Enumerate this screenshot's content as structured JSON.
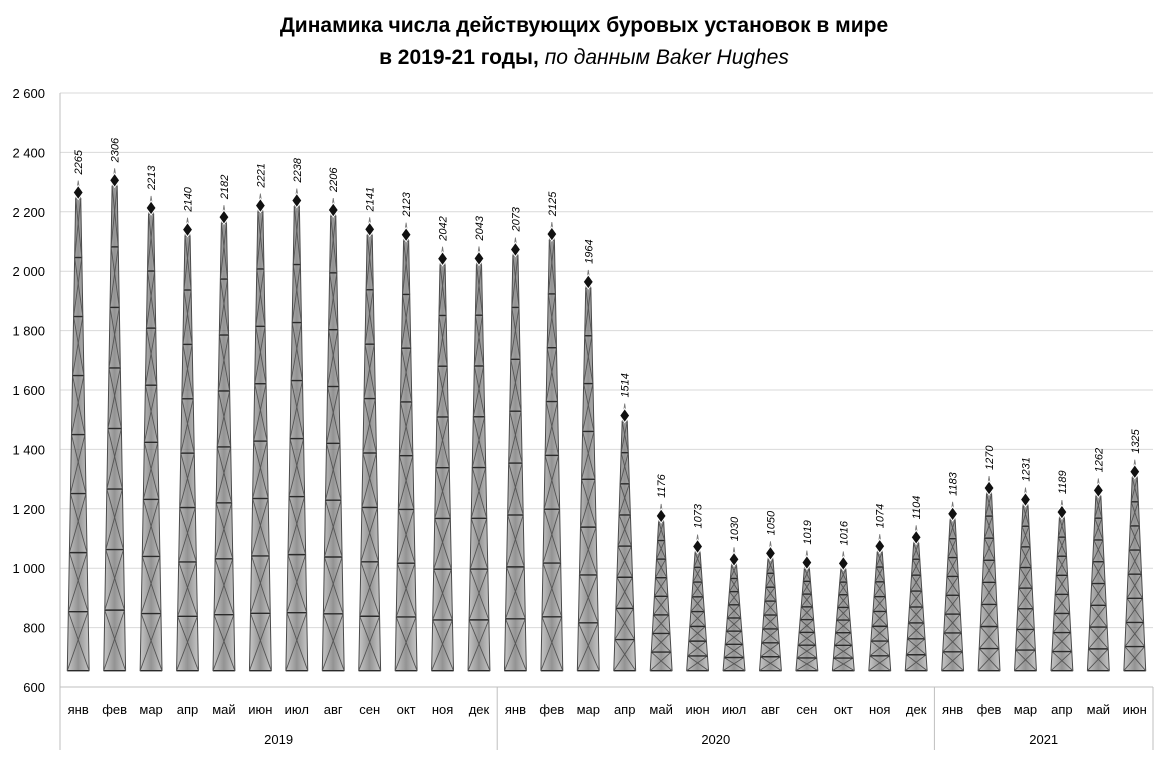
{
  "chart_data": {
    "type": "bar",
    "title": "Динамика числа действующих буровых установок в мире",
    "subtitle_bold": "в 2019-21 годы,",
    "subtitle_italic": "по данным Baker Hughes",
    "ylim": [
      600,
      2600
    ],
    "yticks": [
      "2 600",
      "2 400",
      "2 200",
      "2 000",
      "1 800",
      "1 600",
      "1 400",
      "1 200",
      "1 000",
      "800",
      "600"
    ],
    "ytick_values": [
      2600,
      2400,
      2200,
      2000,
      1800,
      1600,
      1400,
      1200,
      1000,
      800,
      600
    ],
    "grid": true,
    "categories": [
      "янв",
      "фев",
      "мар",
      "апр",
      "май",
      "июн",
      "июл",
      "авг",
      "сен",
      "окт",
      "ноя",
      "дек",
      "янв",
      "фев",
      "мар",
      "апр",
      "май",
      "июн",
      "июл",
      "авг",
      "сен",
      "окт",
      "ноя",
      "дек",
      "янв",
      "фев",
      "мар",
      "апр",
      "май",
      "июн"
    ],
    "values": [
      2265,
      2306,
      2213,
      2140,
      2182,
      2221,
      2238,
      2206,
      2141,
      2123,
      2042,
      2043,
      2073,
      2125,
      1964,
      1514,
      1176,
      1073,
      1030,
      1050,
      1019,
      1016,
      1074,
      1104,
      1183,
      1270,
      1231,
      1189,
      1262,
      1325
    ],
    "groups": [
      {
        "label": "2019",
        "count": 12
      },
      {
        "label": "2020",
        "count": 12
      },
      {
        "label": "2021",
        "count": 6
      }
    ]
  }
}
